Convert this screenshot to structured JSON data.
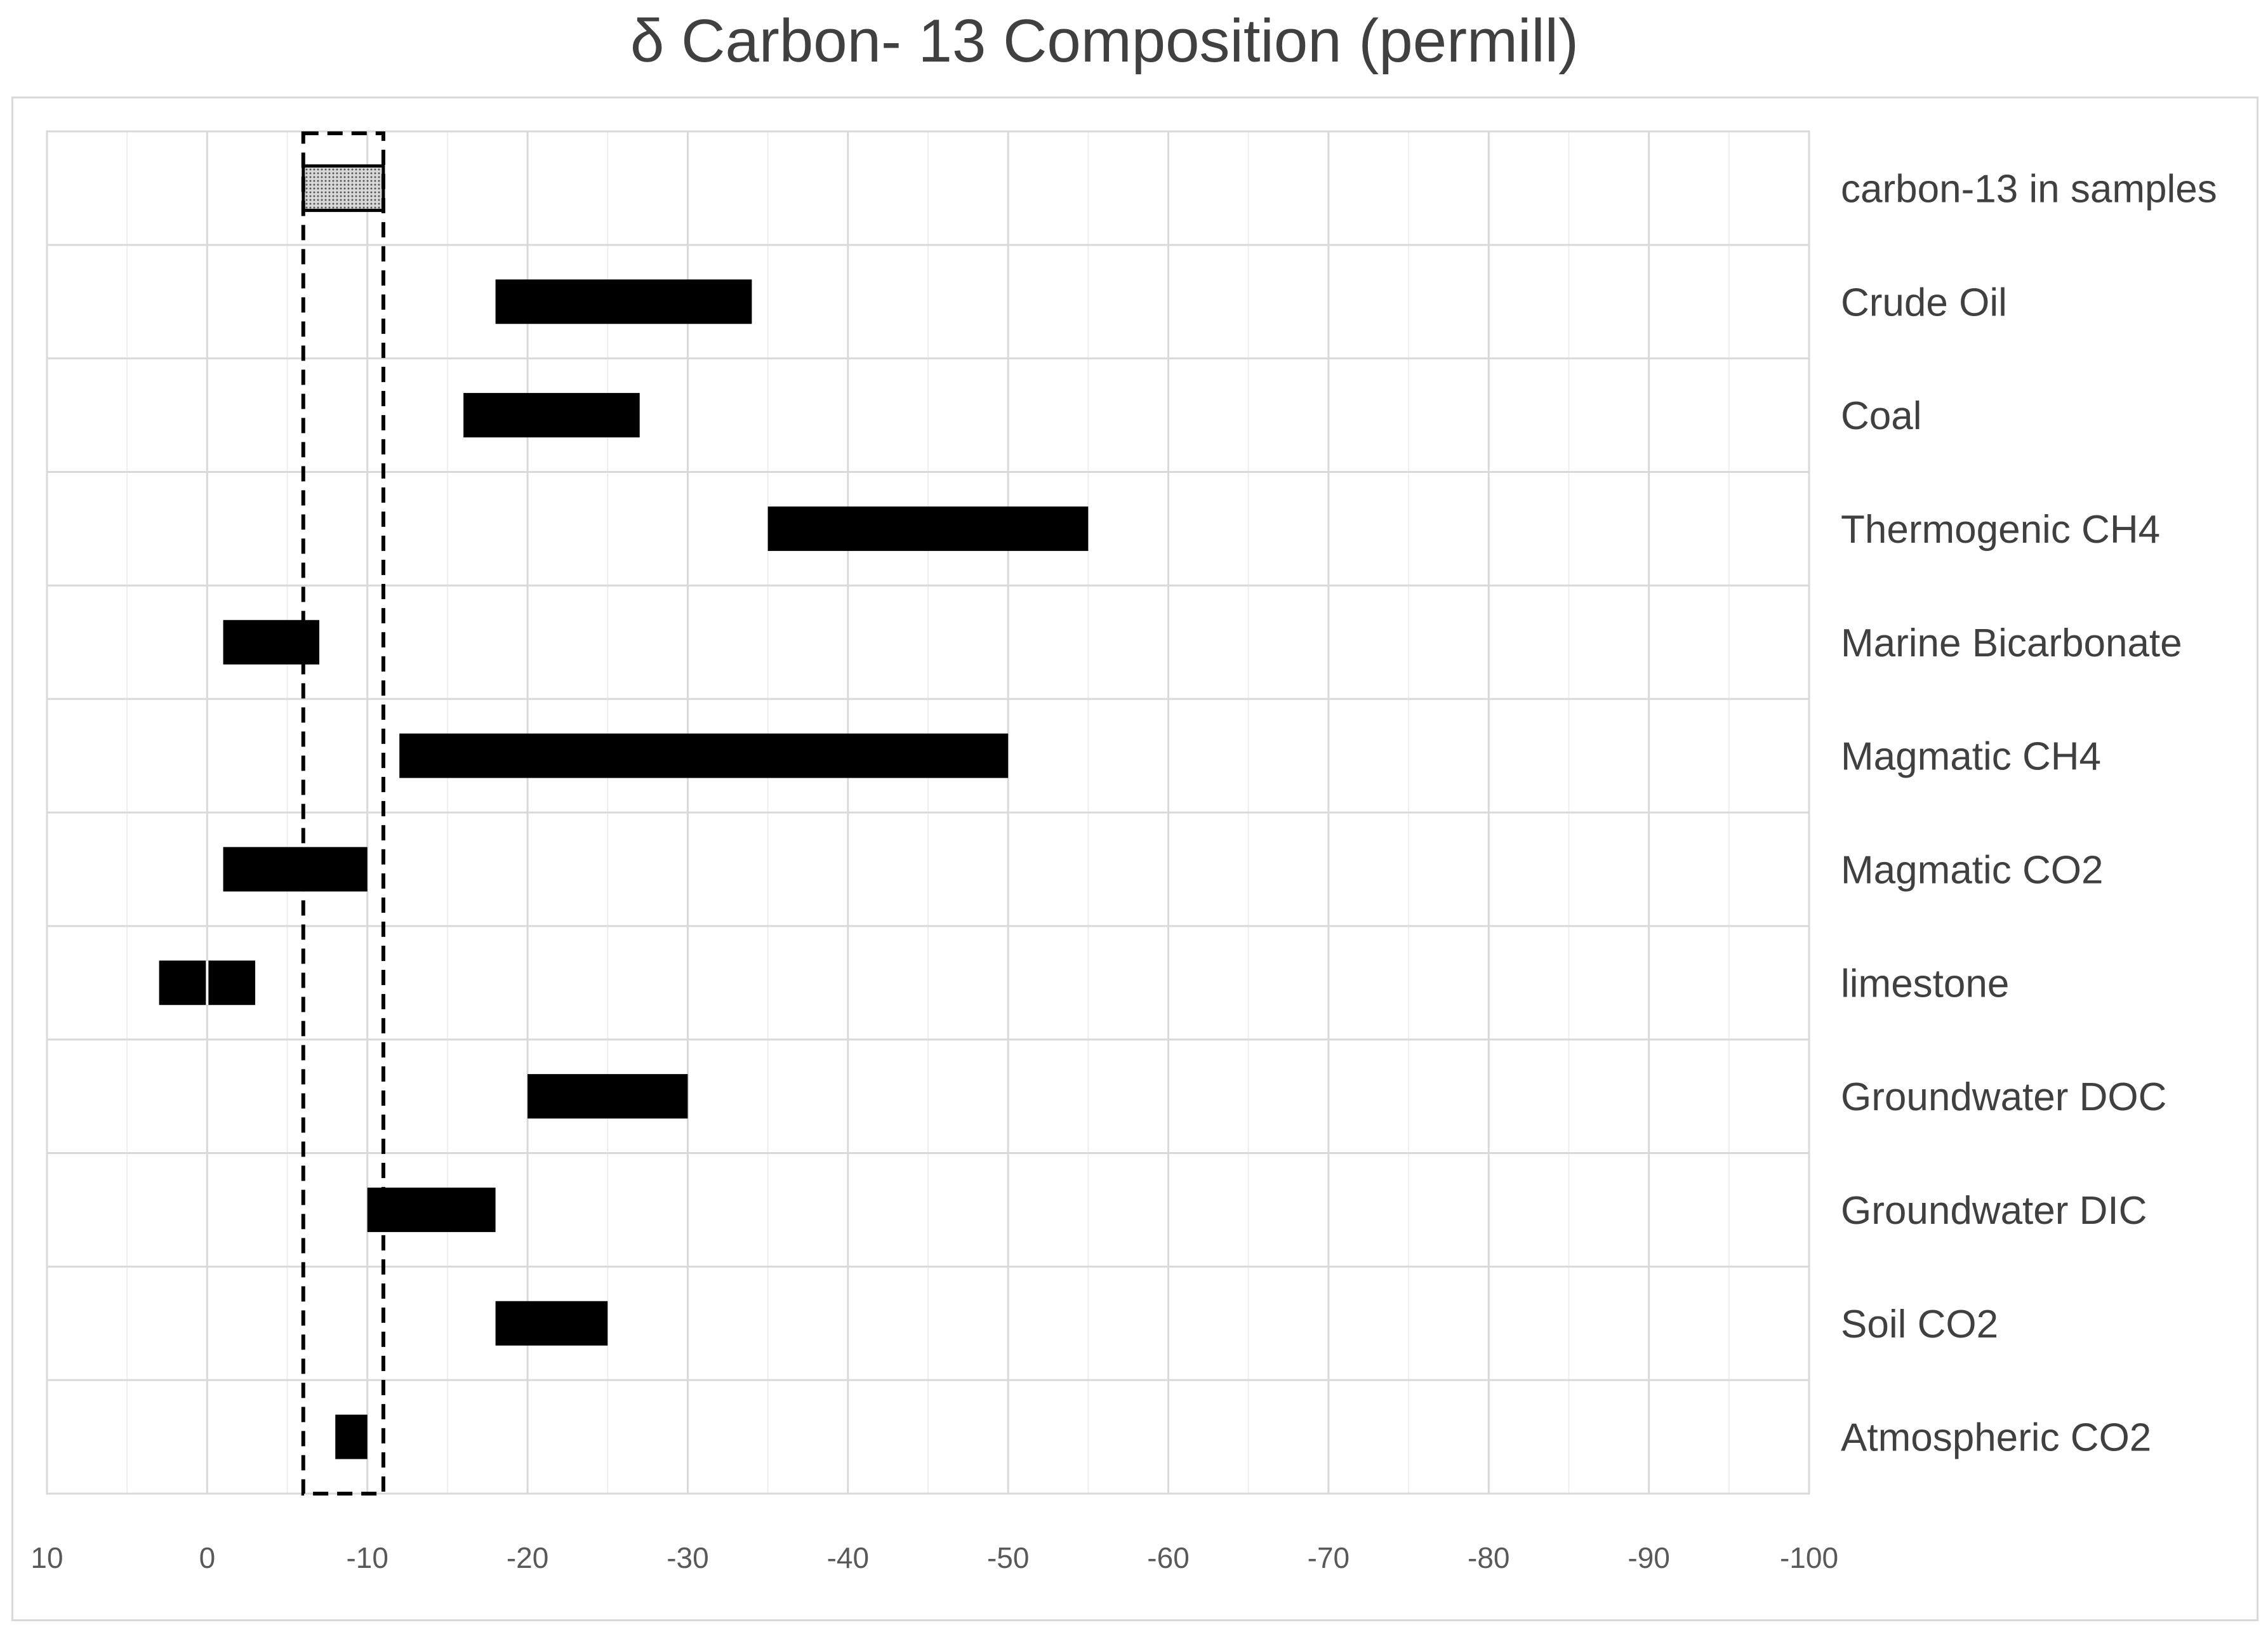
{
  "chart_data": {
    "type": "bar",
    "title": "δ Carbon- 13 Composition (permill)",
    "xlabel": "",
    "ylabel": "",
    "xlim": [
      10,
      -100
    ],
    "x_ticks": [
      "10",
      "0",
      "-10",
      "-20",
      "-30",
      "-40",
      "-50",
      "-60",
      "-70",
      "-80",
      "-90",
      "-100"
    ],
    "x_tick_values": [
      10,
      0,
      -10,
      -20,
      -30,
      -40,
      -50,
      -60,
      -70,
      -80,
      -90,
      -100
    ],
    "grid": true,
    "orientation": "horizontal-range",
    "categories": [
      "carbon-13 in samples",
      "Crude Oil",
      "Coal",
      "Thermogenic CH4",
      "Marine Bicarbonate",
      "Magmatic CH4",
      "Magmatic CO2",
      "limestone",
      "Groundwater DOC",
      "Groundwater DIC",
      "Soil CO2",
      "Atmospheric CO2"
    ],
    "ranges": [
      [
        -6,
        -11
      ],
      [
        -18,
        -34
      ],
      [
        -16,
        -27
      ],
      [
        -35,
        -55
      ],
      [
        -1,
        -7
      ],
      [
        -12,
        -50
      ],
      [
        -1,
        -10
      ],
      [
        3,
        -3
      ],
      [
        -20,
        -30
      ],
      [
        -10,
        -18
      ],
      [
        -18,
        -25
      ],
      [
        -8,
        -10
      ]
    ],
    "highlight_range": [
      -6,
      -11
    ],
    "colors": {
      "bar": "#000000",
      "sample_bar": "#c8c8c8",
      "grid": "#d9d9d9",
      "text": "#404040"
    }
  }
}
